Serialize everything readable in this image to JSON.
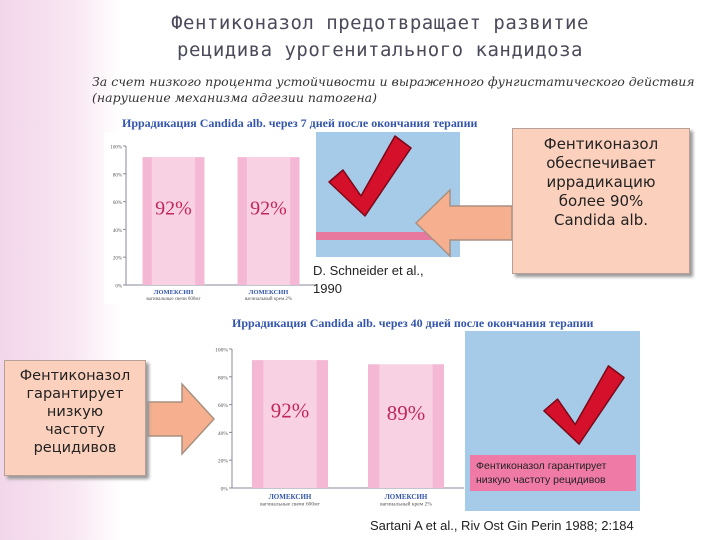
{
  "title_lines": [
    "Фентиконазол предотвращает развитие",
    "рецидива урогенитального кандидоза"
  ],
  "subtitle_lines": [
    "За счет низкого процента устойчивости и выраженного фунгистатического действия",
    "(нарушение механизма адгезии патогена)"
  ],
  "chart_data": [
    {
      "type": "bar",
      "title": "Иррадикация Candida alb. через 7 дней после окончания терапии",
      "categories": [
        "ЛОМЕКСИН",
        "ЛОМЕКСИН"
      ],
      "category_sublabels": [
        "вагинальные свечи 600мг",
        "вагинальный крем 2%"
      ],
      "values": [
        92,
        92
      ],
      "value_labels": [
        "92%",
        "92%"
      ],
      "ylim": [
        0,
        100
      ],
      "yticks": [
        "100%",
        "80%",
        "60%",
        "40%",
        "20%",
        "0%"
      ]
    },
    {
      "type": "bar",
      "title": "Иррадикация Candida alb. через 40 дней после окончания терапии",
      "categories": [
        "ЛОМЕКСИН",
        "ЛОМЕКСИН"
      ],
      "category_sublabels": [
        "вагинальные свечи 600мг",
        "вагинальный крем 2%"
      ],
      "values": [
        92,
        89
      ],
      "value_labels": [
        "92%",
        "89%"
      ],
      "ylim": [
        0,
        100
      ],
      "yticks": [
        "100%",
        "80%",
        "60%",
        "40%",
        "20%",
        "0%"
      ]
    }
  ],
  "callout_top": [
    "Фентиконазол",
    "обеспечивает",
    "иррадикацию",
    "более 90%",
    "Candida alb."
  ],
  "callout_left": [
    "Фентиконазол",
    "гарантирует",
    "низкую",
    "частоту",
    "рецидивов"
  ],
  "citation_1": [
    "D. Schneider et al.,",
    "1990"
  ],
  "citation_2": "Sartani A et al., Riv Ost Gin Perin 1988; 2:184",
  "note_pink": [
    "Фентиконазол гарантирует",
    "низкую частоту рецидивов"
  ],
  "colors": {
    "panel_blue": "#a6cbe8",
    "band_pink": "#e8789e",
    "bar_pink": "#f4b8d4",
    "value_text": "#c0285a",
    "check_red": "#d4102a",
    "callout_fill": "#fbd0bc",
    "arrow_fill": "#f6b090"
  }
}
